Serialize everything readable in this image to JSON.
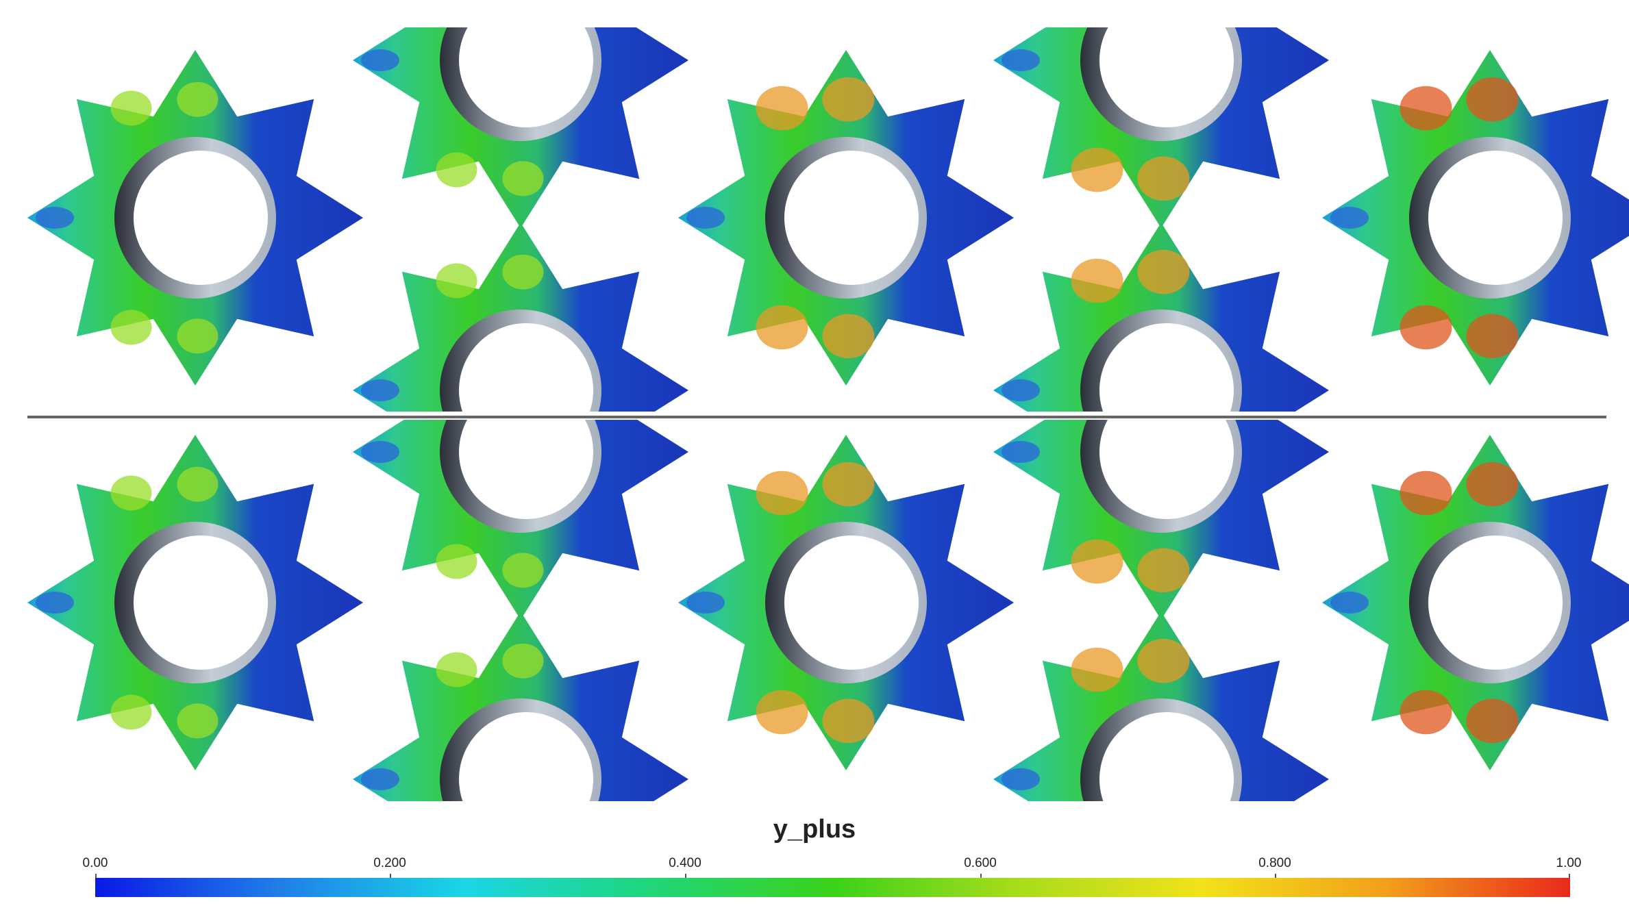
{
  "legend": {
    "title": "y_plus",
    "ticks": [
      "0.00",
      "0.200",
      "0.400",
      "0.600",
      "0.800",
      "1.00"
    ],
    "range": [
      0.0,
      1.0
    ],
    "colormap": [
      "#0a1ae6",
      "#1f7fe8",
      "#1ad6e6",
      "#1fd67a",
      "#3ad21a",
      "#a8dc1a",
      "#f2e21a",
      "#f2a01a",
      "#ea2a1a"
    ]
  },
  "colors": {
    "low": "#1a44c8",
    "mid": "#2ec82a",
    "high": "#e0551e",
    "ring": "#b0bcc8",
    "divider": "#666666"
  },
  "gears": [
    {
      "id": "g1",
      "row": "top",
      "variant": "A",
      "clip": "none"
    },
    {
      "id": "g2",
      "row": "top",
      "variant": "A",
      "clip": "top"
    },
    {
      "id": "g3",
      "row": "top",
      "variant": "A",
      "clip": "divider"
    },
    {
      "id": "g4",
      "row": "top",
      "variant": "B",
      "clip": "none"
    },
    {
      "id": "g5",
      "row": "top",
      "variant": "B",
      "clip": "top"
    },
    {
      "id": "g6",
      "row": "top",
      "variant": "B",
      "clip": "divider"
    },
    {
      "id": "g7",
      "row": "top",
      "variant": "C",
      "clip": "none"
    },
    {
      "id": "g8",
      "row": "bottom",
      "variant": "A",
      "clip": "none"
    },
    {
      "id": "g9",
      "row": "bottom",
      "variant": "A",
      "clip": "divider"
    },
    {
      "id": "g10",
      "row": "bottom",
      "variant": "A",
      "clip": "bottom"
    },
    {
      "id": "g11",
      "row": "bottom",
      "variant": "B",
      "clip": "none"
    },
    {
      "id": "g12",
      "row": "bottom",
      "variant": "B",
      "clip": "divider"
    },
    {
      "id": "g13",
      "row": "bottom",
      "variant": "B",
      "clip": "bottom"
    },
    {
      "id": "g14",
      "row": "bottom",
      "variant": "C",
      "clip": "none"
    }
  ]
}
